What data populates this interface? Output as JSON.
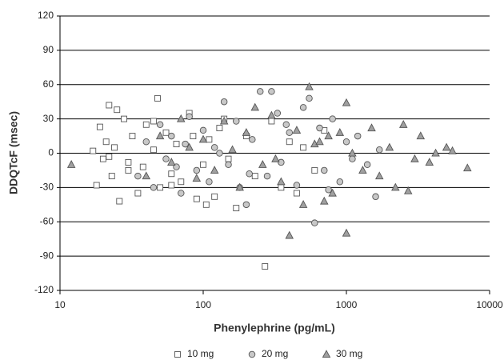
{
  "chart_data": {
    "type": "scatter",
    "xlabel": "Phenylephrine (pg/mL)",
    "ylabel": "DDQTcF (msec)",
    "xscale": "log",
    "xlim": [
      10,
      10000
    ],
    "xticks": [
      10,
      100,
      1000,
      10000
    ],
    "ylim": [
      -120,
      120
    ],
    "yticks": [
      -120,
      -90,
      -60,
      -30,
      0,
      30,
      60,
      90,
      120
    ],
    "ygrid": true,
    "legend": "bottom",
    "series": [
      {
        "name": "10 mg",
        "marker": "square",
        "color": "#ffffff",
        "x": [
          17,
          18,
          19,
          20,
          21,
          22,
          23,
          24,
          25,
          26,
          28,
          30,
          32,
          35,
          38,
          40,
          45,
          48,
          50,
          55,
          60,
          65,
          70,
          80,
          90,
          100,
          110,
          120,
          130,
          150,
          170,
          200,
          230,
          270,
          300,
          350,
          400,
          450,
          500,
          600,
          700,
          22,
          30,
          45,
          60,
          85,
          105,
          140
        ],
        "values": [
          2,
          -28,
          23,
          -5,
          10,
          42,
          -20,
          5,
          38,
          -42,
          30,
          -8,
          15,
          -35,
          -12,
          25,
          3,
          48,
          -30,
          18,
          -18,
          8,
          -25,
          35,
          -40,
          -10,
          12,
          -38,
          22,
          -5,
          -48,
          15,
          -20,
          -99,
          28,
          -30,
          10,
          -35,
          5,
          -15,
          20,
          -3,
          -15,
          28,
          -28,
          15,
          -45,
          30
        ]
      },
      {
        "name": "20 mg",
        "marker": "circle",
        "color": "#c8c8c8",
        "x": [
          35,
          40,
          45,
          50,
          55,
          60,
          70,
          75,
          80,
          90,
          100,
          110,
          120,
          140,
          150,
          170,
          180,
          200,
          220,
          250,
          280,
          300,
          330,
          350,
          400,
          450,
          500,
          550,
          600,
          650,
          700,
          800,
          900,
          1000,
          1100,
          1200,
          1400,
          1600,
          1700,
          65,
          130,
          210,
          380,
          750
        ],
        "values": [
          -20,
          10,
          -30,
          25,
          -5,
          15,
          -35,
          8,
          32,
          -15,
          20,
          -25,
          5,
          45,
          -10,
          28,
          -30,
          -45,
          12,
          54,
          -20,
          54,
          35,
          -8,
          18,
          -28,
          40,
          48,
          -61,
          22,
          -15,
          30,
          -25,
          10,
          -5,
          15,
          -10,
          -38,
          3,
          -12,
          0,
          -18,
          25,
          -32
        ]
      },
      {
        "name": "30 mg",
        "marker": "triangle",
        "color": "#a0a0a0",
        "x": [
          12,
          40,
          50,
          60,
          70,
          80,
          90,
          100,
          120,
          140,
          160,
          180,
          200,
          230,
          260,
          300,
          350,
          400,
          450,
          500,
          550,
          600,
          700,
          750,
          800,
          900,
          1000,
          1000,
          1100,
          1300,
          1500,
          1700,
          2000,
          2200,
          2500,
          2700,
          3000,
          3300,
          3800,
          4200,
          5000,
          5500,
          7000,
          320,
          650
        ],
        "values": [
          -10,
          -20,
          15,
          -8,
          30,
          5,
          -22,
          12,
          -15,
          28,
          3,
          -30,
          18,
          40,
          -10,
          33,
          -25,
          -72,
          20,
          -45,
          58,
          8,
          -42,
          15,
          -35,
          18,
          -70,
          44,
          0,
          -15,
          22,
          -20,
          5,
          -30,
          25,
          -33,
          -5,
          15,
          -8,
          0,
          5,
          2,
          -13,
          -5,
          10
        ]
      }
    ]
  }
}
